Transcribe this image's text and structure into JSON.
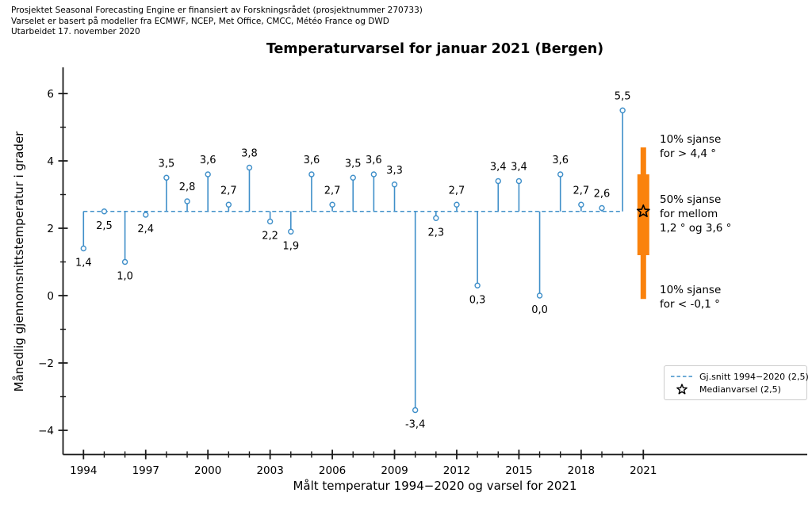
{
  "header": {
    "line1": "Prosjektet Seasonal Forecasting Engine er finansiert av Forskningsrådet (prosjektnummer 270733)",
    "line2": "Varselet er basert på modeller fra ECMWF, NCEP, Met Office, CMCC, Météo France og DWD",
    "line3": "Utarbeidet 17. november 2020"
  },
  "chart_data": {
    "type": "stem",
    "title": "Temperaturvarsel for januar 2021 (Bergen)",
    "xlabel": "Målt temperatur 1994−2020 og varsel for 2021",
    "ylabel": "Månedlig gjennomsnittstemperatur i grader",
    "baseline_mean": 2.5,
    "points": [
      {
        "year": 1994,
        "value": 1.4,
        "label": "1,4"
      },
      {
        "year": 1995,
        "value": 2.5,
        "label": "2,5"
      },
      {
        "year": 1996,
        "value": 1.0,
        "label": "1,0"
      },
      {
        "year": 1997,
        "value": 2.4,
        "label": "2,4"
      },
      {
        "year": 1998,
        "value": 3.5,
        "label": "3,5"
      },
      {
        "year": 1999,
        "value": 2.8,
        "label": "2,8"
      },
      {
        "year": 2000,
        "value": 3.6,
        "label": "3,6"
      },
      {
        "year": 2001,
        "value": 2.7,
        "label": "2,7"
      },
      {
        "year": 2002,
        "value": 3.8,
        "label": "3,8"
      },
      {
        "year": 2003,
        "value": 2.2,
        "label": "2,2"
      },
      {
        "year": 2004,
        "value": 1.9,
        "label": "1,9"
      },
      {
        "year": 2005,
        "value": 3.6,
        "label": "3,6"
      },
      {
        "year": 2006,
        "value": 2.7,
        "label": "2,7"
      },
      {
        "year": 2007,
        "value": 3.5,
        "label": "3,5"
      },
      {
        "year": 2008,
        "value": 3.6,
        "label": "3,6"
      },
      {
        "year": 2009,
        "value": 3.3,
        "label": "3,3"
      },
      {
        "year": 2010,
        "value": -3.4,
        "label": "-3,4"
      },
      {
        "year": 2011,
        "value": 2.3,
        "label": "2,3"
      },
      {
        "year": 2012,
        "value": 2.7,
        "label": "2,7"
      },
      {
        "year": 2013,
        "value": 0.3,
        "label": "0,3"
      },
      {
        "year": 2014,
        "value": 3.4,
        "label": "3,4"
      },
      {
        "year": 2015,
        "value": 3.4,
        "label": "3,4"
      },
      {
        "year": 2016,
        "value": 0.0,
        "label": "0,0"
      },
      {
        "year": 2017,
        "value": 3.6,
        "label": "3,6"
      },
      {
        "year": 2018,
        "value": 2.7,
        "label": "2,7"
      },
      {
        "year": 2019,
        "value": 2.6,
        "label": "2,6"
      },
      {
        "year": 2020,
        "value": 5.5,
        "label": "5,5"
      }
    ],
    "forecast": {
      "year": 2021,
      "median": 2.5,
      "upper_10pct": 4.4,
      "lower_10pct": -0.1,
      "band_low": 1.2,
      "band_high": 3.6
    },
    "x_ticks": [
      "1994",
      "1997",
      "2000",
      "2003",
      "2006",
      "2009",
      "2012",
      "2015",
      "2018",
      "2021"
    ],
    "y_ticks": [
      {
        "value": 6,
        "label": "6"
      },
      {
        "value": 4,
        "label": "4"
      },
      {
        "value": 2,
        "label": "2"
      },
      {
        "value": 0,
        "label": "0"
      },
      {
        "value": -2,
        "label": "−2"
      },
      {
        "value": -4,
        "label": "−4"
      }
    ],
    "y_minor_ticks": [
      5,
      3,
      1,
      -1,
      -3
    ],
    "ylim": [
      -4.7,
      6.8
    ],
    "grid": false,
    "legend_position": "lower right",
    "colors": {
      "stem": "#3f8fc9",
      "forecast_bar": "#fa820d",
      "axis": "#1a1a1a",
      "text": "#000000"
    }
  },
  "annotations": {
    "high": "10% sjanse\nfor > 4,4 °",
    "mid": "50% sjanse\nfor mellom\n1,2 ° og 3,6 °",
    "low": "10% sjanse\nfor < -0,1 °"
  },
  "legend": {
    "mean_label": "Gj.snitt 1994−2020 (2,5)",
    "median_label": "Medianvarsel (2,5)"
  }
}
